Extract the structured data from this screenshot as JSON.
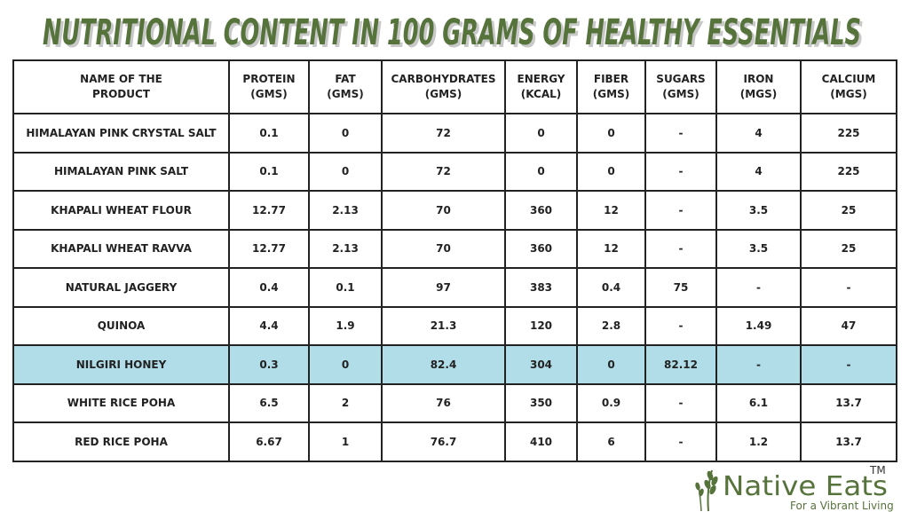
{
  "header": {
    "title": "NUTRITIONAL CONTENT IN 100 GRAMS OF HEALTHY ESSENTIALS"
  },
  "table": {
    "headers": [
      [
        "NAME OF THE",
        "PRODUCT"
      ],
      [
        "PROTEIN",
        "(GMS)"
      ],
      [
        "FAT",
        "(GMS)"
      ],
      [
        "CARBOHYDRATES",
        "(GMS)"
      ],
      [
        "ENERGY",
        "(KCAL)"
      ],
      [
        "FIBER",
        "(GMS)"
      ],
      [
        "SUGARS",
        "(GMS)"
      ],
      [
        "IRON",
        "(MGS)"
      ],
      [
        "CALCIUM",
        "(MGS)"
      ]
    ],
    "rows": [
      [
        "HIMALAYAN PINK CRYSTAL SALT",
        "0.1",
        "0",
        "72",
        "0",
        "0",
        "-",
        "4",
        "225"
      ],
      [
        "HIMALAYAN PINK SALT",
        "0.1",
        "0",
        "72",
        "0",
        "0",
        "-",
        "4",
        "225"
      ],
      [
        "KHAPALI WHEAT FLOUR",
        "12.77",
        "2.13",
        "70",
        "360",
        "12",
        "-",
        "3.5",
        "25"
      ],
      [
        "KHAPALI WHEAT RAVVA",
        "12.77",
        "2.13",
        "70",
        "360",
        "12",
        "-",
        "3.5",
        "25"
      ],
      [
        "NATURAL JAGGERY",
        "0.4",
        "0.1",
        "97",
        "383",
        "0.4",
        "75",
        "-",
        "-"
      ],
      [
        "QUINOA",
        "4.4",
        "1.9",
        "21.3",
        "120",
        "2.8",
        "-",
        "1.49",
        "47"
      ],
      [
        "NILGIRI HONEY",
        "0.3",
        "0",
        "82.4",
        "304",
        "0",
        "82.12",
        "-",
        "-"
      ],
      [
        "WHITE RICE POHA",
        "6.5",
        "2",
        "76",
        "350",
        "0.9",
        "-",
        "6.1",
        "13.7"
      ],
      [
        "RED RICE POHA",
        "6.67",
        "1",
        "76.7",
        "410",
        "6",
        "-",
        "1.2",
        "13.7"
      ]
    ]
  },
  "logo": {
    "name": "Native Eats",
    "trademark": "TM",
    "tagline": "For a Vibrant Living"
  }
}
